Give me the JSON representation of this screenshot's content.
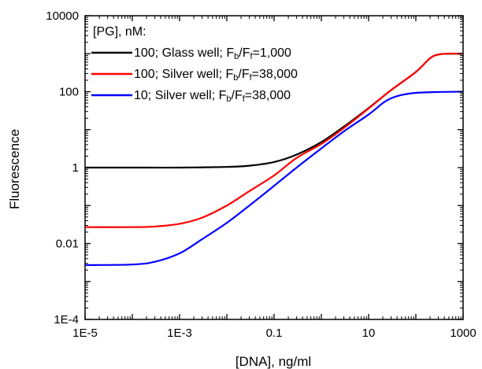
{
  "chart_data": {
    "type": "line",
    "title": "",
    "xlabel": "[DNA], ng/ml",
    "ylabel": "Fluorescence",
    "xscale": "log",
    "yscale": "log",
    "xlim": [
      1e-05,
      1000
    ],
    "ylim": [
      0.0001,
      10000
    ],
    "x_ticks": [
      {
        "value": 1e-05,
        "label": "1E-5"
      },
      {
        "value": 0.001,
        "label": "1E-3"
      },
      {
        "value": 0.1,
        "label": "0.1"
      },
      {
        "value": 10,
        "label": "10"
      },
      {
        "value": 1000,
        "label": "1000"
      }
    ],
    "y_ticks": [
      {
        "value": 0.0001,
        "label": "1E-4"
      },
      {
        "value": 0.01,
        "label": "0.01"
      },
      {
        "value": 1,
        "label": "1"
      },
      {
        "value": 100,
        "label": "100"
      },
      {
        "value": 10000,
        "label": "10000"
      }
    ],
    "grid": false,
    "legend": {
      "placement": "top-left",
      "title": "[PG], nM:"
    },
    "series": [
      {
        "name": "100; Glass well; F_b/F_f=1,000",
        "legend_parts": {
          "pre": "100; Glass well; F",
          "sub1": "b",
          "mid": "/F",
          "sub2": "f",
          "post": "=1,000"
        },
        "color": "#000000",
        "points": [
          [
            1e-05,
            1.0
          ],
          [
            0.0001,
            1.0
          ],
          [
            0.001,
            1.0
          ],
          [
            0.01,
            1.04
          ],
          [
            0.03,
            1.12
          ],
          [
            0.1,
            1.4
          ],
          [
            0.3,
            2.2
          ],
          [
            1,
            4.7
          ],
          [
            3,
            12
          ],
          [
            10,
            37
          ],
          [
            30,
            110
          ],
          [
            100,
            330
          ],
          [
            200,
            760
          ],
          [
            300,
            950
          ],
          [
            500,
            1000
          ],
          [
            1000,
            1000
          ]
        ]
      },
      {
        "name": "100; Silver well; F_b/F_f=38,000",
        "legend_parts": {
          "pre": "100; Silver well; F",
          "sub1": "b",
          "mid": "/F",
          "sub2": "f",
          "post": "=38,000"
        },
        "color": "#ff0000",
        "points": [
          [
            1e-05,
            0.027
          ],
          [
            0.0001,
            0.027
          ],
          [
            0.0003,
            0.028
          ],
          [
            0.001,
            0.033
          ],
          [
            0.003,
            0.048
          ],
          [
            0.01,
            0.1
          ],
          [
            0.03,
            0.24
          ],
          [
            0.1,
            0.62
          ],
          [
            0.3,
            1.8
          ],
          [
            1,
            4.2
          ],
          [
            3,
            11
          ],
          [
            10,
            36
          ],
          [
            30,
            110
          ],
          [
            100,
            330
          ],
          [
            200,
            760
          ],
          [
            300,
            950
          ],
          [
            500,
            1000
          ],
          [
            1000,
            1000
          ]
        ]
      },
      {
        "name": "10; Silver well; F_b/F_f=38,000",
        "legend_parts": {
          "pre": "10; Silver well; F",
          "sub1": "b",
          "mid": "/F",
          "sub2": "f",
          "post": "=38,000"
        },
        "color": "#0000ff",
        "points": [
          [
            1e-05,
            0.0027
          ],
          [
            0.0001,
            0.0028
          ],
          [
            0.0003,
            0.0033
          ],
          [
            0.001,
            0.0055
          ],
          [
            0.003,
            0.013
          ],
          [
            0.01,
            0.035
          ],
          [
            0.03,
            0.1
          ],
          [
            0.1,
            0.33
          ],
          [
            0.3,
            1.0
          ],
          [
            1,
            3.2
          ],
          [
            3,
            9
          ],
          [
            10,
            25
          ],
          [
            20,
            50
          ],
          [
            30,
            67
          ],
          [
            50,
            82
          ],
          [
            100,
            93
          ],
          [
            300,
            98
          ],
          [
            1000,
            100
          ]
        ]
      }
    ]
  }
}
